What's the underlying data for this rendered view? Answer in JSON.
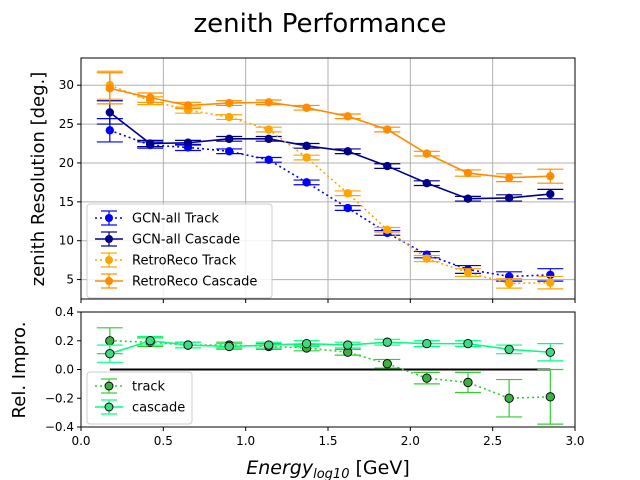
{
  "title": "zenith Performance",
  "colors": {
    "gcn_track": "#0000ff",
    "gcn_cascade": "#00008b",
    "retro_track": "#ffa500",
    "retro_cascade": "#ff8c00",
    "rel_track": "#32cd32",
    "rel_cascade": "#00ff7f",
    "grid": "#b0b0b0",
    "zero_line": "#000000"
  },
  "chart_data": [
    {
      "type": "line",
      "panel": "top",
      "xlabel": "",
      "ylabel": "zenith Resolution [deg.]",
      "xlim": [
        0.0,
        3.0
      ],
      "ylim": [
        2.5,
        33.5
      ],
      "yticks": [
        "5",
        "10",
        "15",
        "20",
        "25",
        "30"
      ],
      "grid": true,
      "legend": "lower-left",
      "x": [
        0.175,
        0.42,
        0.65,
        0.9,
        1.14,
        1.37,
        1.62,
        1.86,
        2.1,
        2.35,
        2.6,
        2.85
      ],
      "series": [
        {
          "name": "GCN-all Track",
          "style": "dotted",
          "values": [
            24.2,
            22.3,
            22.0,
            21.5,
            20.4,
            17.5,
            14.2,
            11.0,
            8.2,
            6.3,
            5.4,
            5.6
          ],
          "err": [
            1.5,
            0.4,
            0.4,
            0.3,
            0.3,
            0.3,
            0.3,
            0.3,
            0.4,
            0.5,
            0.6,
            0.8
          ]
        },
        {
          "name": "GCN-all Cascade",
          "style": "solid",
          "values": [
            26.5,
            22.5,
            22.6,
            23.1,
            23.1,
            22.2,
            21.5,
            19.6,
            17.4,
            15.4,
            15.5,
            16.0
          ],
          "err": [
            1.5,
            0.4,
            0.3,
            0.3,
            0.3,
            0.3,
            0.3,
            0.3,
            0.3,
            0.3,
            0.4,
            0.6
          ]
        },
        {
          "name": "RetroReco Track",
          "style": "dotted",
          "values": [
            30.0,
            28.0,
            26.8,
            25.9,
            24.3,
            20.7,
            16.1,
            11.4,
            7.7,
            5.9,
            4.5,
            4.6
          ],
          "err": [
            1.8,
            0.5,
            0.4,
            0.3,
            0.3,
            0.3,
            0.3,
            0.3,
            0.4,
            0.5,
            0.6,
            0.8
          ]
        },
        {
          "name": "RetroReco Cascade",
          "style": "solid",
          "values": [
            29.6,
            28.4,
            27.4,
            27.7,
            27.8,
            27.1,
            26.0,
            24.3,
            21.2,
            18.7,
            18.1,
            18.3
          ],
          "err": [
            2.0,
            0.6,
            0.4,
            0.3,
            0.3,
            0.3,
            0.3,
            0.3,
            0.3,
            0.4,
            0.5,
            0.9
          ]
        }
      ]
    },
    {
      "type": "line",
      "panel": "bottom",
      "xlabel": "Energy_log10 [GeV]",
      "xlabel_main": "Energy",
      "xlabel_sub": "log10",
      "xlabel_unit": " [GeV]",
      "ylabel": "Rel. Impro.",
      "xlim": [
        0.0,
        3.0
      ],
      "ylim": [
        -0.4,
        0.4
      ],
      "xticks": [
        "0.0",
        "0.5",
        "1.0",
        "1.5",
        "2.0",
        "2.5",
        "3.0"
      ],
      "yticks": [
        "−0.4",
        "−0.2",
        "0.0",
        "0.2",
        "0.4"
      ],
      "grid": false,
      "legend": "lower-left",
      "x": [
        0.175,
        0.42,
        0.65,
        0.9,
        1.14,
        1.37,
        1.62,
        1.86,
        2.1,
        2.35,
        2.6,
        2.85
      ],
      "series": [
        {
          "name": "track",
          "style": "dotted",
          "values": [
            0.2,
            0.19,
            0.17,
            0.17,
            0.16,
            0.15,
            0.12,
            0.04,
            -0.06,
            -0.09,
            -0.2,
            -0.19
          ],
          "err": [
            0.09,
            0.03,
            0.02,
            0.02,
            0.02,
            0.02,
            0.02,
            0.03,
            0.04,
            0.07,
            0.13,
            0.19
          ]
        },
        {
          "name": "cascade",
          "style": "solid",
          "values": [
            0.11,
            0.2,
            0.17,
            0.16,
            0.17,
            0.18,
            0.17,
            0.19,
            0.18,
            0.18,
            0.14,
            0.12
          ],
          "err": [
            0.06,
            0.03,
            0.02,
            0.02,
            0.02,
            0.02,
            0.02,
            0.02,
            0.02,
            0.02,
            0.03,
            0.06
          ]
        }
      ]
    }
  ]
}
